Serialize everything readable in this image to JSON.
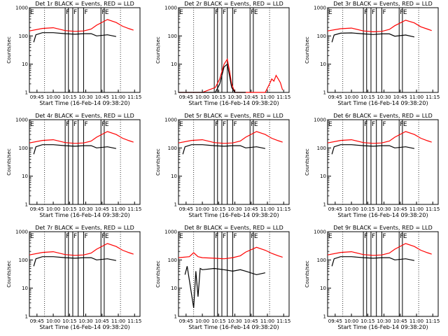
{
  "chart_data": {
    "type": "line",
    "layout": "3x3 grid of panels",
    "shared": {
      "xlabel": "Start Time (16-Feb-14 09:38:20)",
      "ylabel": "Counts/sec",
      "x_ticks": [
        "09:45",
        "10:00",
        "10:15",
        "10:30",
        "10:45",
        "11:00",
        "11:15"
      ],
      "x_tick_minutes": [
        405,
        420,
        435,
        450,
        465,
        480,
        495
      ],
      "xlim_minutes": [
        398,
        500
      ],
      "y_scale": "log",
      "ylim": [
        1,
        1000
      ],
      "y_ticks": [
        "1",
        "10",
        "100",
        "1000"
      ],
      "y_tick_values": [
        1,
        10,
        100,
        1000
      ],
      "colors": {
        "events": "#000000",
        "lld": "#ff0000"
      },
      "dotted_lines_minutes": [
        412,
        482
      ],
      "flag_lines_minutes": [
        431,
        434,
        438,
        443,
        448,
        464,
        467
      ],
      "flag_labels": [
        {
          "text": "E",
          "at": 398
        },
        {
          "text": "F",
          "at": 431
        },
        {
          "text": "F",
          "at": 438
        },
        {
          "text": "F",
          "at": 448
        },
        {
          "text": "F",
          "at": 464
        },
        {
          "text": "E",
          "at": 467
        }
      ]
    },
    "panels": [
      {
        "title": "Det 1r BLACK = Events, RED = LLD",
        "lld": {
          "x": [
            398,
            410,
            420,
            431,
            440,
            448,
            455,
            460,
            470,
            478,
            484,
            490,
            494
          ],
          "y": [
            150,
            185,
            195,
            155,
            145,
            150,
            175,
            240,
            380,
            300,
            220,
            180,
            160
          ]
        },
        "events": {
          "x": [
            402,
            404,
            410,
            420,
            431,
            440,
            448,
            455,
            460,
            470,
            478
          ],
          "y": [
            60,
            110,
            130,
            130,
            120,
            115,
            120,
            120,
            100,
            110,
            95
          ]
        }
      },
      {
        "title": "Det 2r BLACK = Events, RED = LLD",
        "lld": {
          "x": [
            398,
            420,
            432,
            436,
            440,
            443,
            445,
            447,
            450,
            455,
            460,
            463,
            470,
            478,
            482,
            484,
            486,
            488,
            490,
            492,
            494
          ],
          "y": [
            1,
            1,
            1.5,
            3,
            10,
            15,
            6,
            2,
            1,
            1,
            1,
            1,
            1,
            1,
            2,
            3,
            2.5,
            4,
            3,
            2.2,
            1.2
          ]
        },
        "events": {
          "x": [
            398,
            432,
            436,
            440,
            443,
            445,
            447,
            450,
            460
          ],
          "y": [
            1,
            1,
            2,
            8,
            10,
            4,
            1.5,
            1,
            1
          ]
        }
      },
      {
        "title": "Det 3r BLACK = Events, RED = LLD",
        "lld": {
          "x": [
            398,
            410,
            420,
            431,
            440,
            448,
            455,
            460,
            470,
            478,
            484,
            490,
            494
          ],
          "y": [
            150,
            180,
            190,
            150,
            140,
            145,
            170,
            230,
            360,
            290,
            210,
            175,
            155
          ]
        },
        "events": {
          "x": [
            402,
            404,
            410,
            420,
            431,
            440,
            448,
            455,
            460,
            470,
            478
          ],
          "y": [
            60,
            108,
            125,
            128,
            118,
            112,
            118,
            118,
            98,
            108,
            92
          ]
        }
      },
      {
        "title": "Det 4r BLACK = Events, RED = LLD",
        "lld": {
          "x": [
            398,
            410,
            420,
            431,
            440,
            448,
            455,
            460,
            470,
            478,
            484,
            490,
            494
          ],
          "y": [
            150,
            185,
            195,
            155,
            145,
            150,
            175,
            240,
            380,
            300,
            220,
            180,
            160
          ]
        },
        "events": {
          "x": [
            402,
            404,
            410,
            420,
            431,
            440,
            448,
            455,
            460,
            470,
            478
          ],
          "y": [
            60,
            110,
            130,
            130,
            120,
            115,
            120,
            120,
            100,
            110,
            95
          ]
        }
      },
      {
        "title": "Det 5r BLACK = Events, RED = LLD",
        "lld": {
          "x": [
            398,
            410,
            420,
            431,
            440,
            448,
            455,
            460,
            470,
            478,
            484,
            490,
            494
          ],
          "y": [
            150,
            185,
            195,
            155,
            145,
            150,
            175,
            240,
            380,
            300,
            220,
            180,
            160
          ]
        },
        "events": {
          "x": [
            402,
            404,
            410,
            420,
            431,
            440,
            448,
            455,
            460,
            470,
            478
          ],
          "y": [
            60,
            110,
            130,
            130,
            120,
            115,
            120,
            120,
            100,
            110,
            95
          ]
        }
      },
      {
        "title": "Det 6r BLACK = Events, RED = LLD",
        "lld": {
          "x": [
            398,
            410,
            420,
            431,
            440,
            448,
            455,
            460,
            470,
            478,
            484,
            490,
            494
          ],
          "y": [
            150,
            185,
            195,
            155,
            145,
            150,
            175,
            240,
            380,
            300,
            220,
            180,
            160
          ]
        },
        "events": {
          "x": [
            402,
            404,
            410,
            420,
            431,
            440,
            448,
            455,
            460,
            470,
            478
          ],
          "y": [
            60,
            110,
            130,
            130,
            120,
            115,
            120,
            120,
            100,
            110,
            95
          ]
        }
      },
      {
        "title": "Det 7r BLACK = Events, RED = LLD",
        "lld": {
          "x": [
            398,
            410,
            420,
            431,
            440,
            448,
            455,
            460,
            470,
            478,
            484,
            490,
            494
          ],
          "y": [
            150,
            185,
            195,
            155,
            145,
            150,
            175,
            240,
            380,
            300,
            220,
            180,
            160
          ]
        },
        "events": {
          "x": [
            402,
            404,
            410,
            420,
            431,
            440,
            448,
            455,
            460,
            470,
            478
          ],
          "y": [
            60,
            110,
            130,
            130,
            120,
            115,
            120,
            120,
            100,
            110,
            95
          ]
        }
      },
      {
        "title": "Det 8r BLACK = Events, RED = LLD",
        "lld": {
          "x": [
            398,
            408,
            412,
            416,
            420,
            431,
            440,
            448,
            455,
            460,
            470,
            478,
            484,
            490,
            494
          ],
          "y": [
            120,
            130,
            180,
            130,
            120,
            115,
            110,
            120,
            140,
            190,
            280,
            220,
            170,
            140,
            125
          ]
        },
        "events": {
          "x": [
            404,
            406,
            412,
            414,
            416,
            418,
            420,
            431,
            440,
            448,
            455,
            460,
            470,
            478
          ],
          "y": [
            30,
            60,
            2,
            40,
            5,
            50,
            45,
            50,
            45,
            40,
            45,
            40,
            30,
            35
          ]
        }
      },
      {
        "title": "Det 9r BLACK = Events, RED = LLD",
        "lld": {
          "x": [
            398,
            410,
            420,
            431,
            440,
            448,
            455,
            460,
            470,
            478,
            484,
            490,
            494
          ],
          "y": [
            150,
            185,
            195,
            155,
            145,
            150,
            175,
            240,
            380,
            300,
            220,
            180,
            160
          ]
        },
        "events": {
          "x": [
            402,
            404,
            410,
            420,
            431,
            440,
            448,
            455,
            460,
            470,
            478
          ],
          "y": [
            60,
            110,
            130,
            130,
            120,
            115,
            120,
            120,
            100,
            110,
            95
          ]
        }
      }
    ]
  }
}
